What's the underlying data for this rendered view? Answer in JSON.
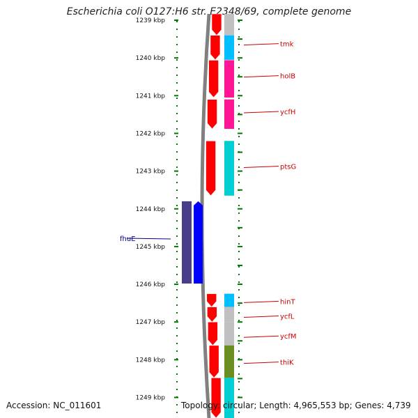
{
  "title": "Escherichia coli O127:H6 str. E2348/69, complete genome",
  "footer": {
    "accession": "Accession: NC_011601",
    "topology": "Topology: circular; Length: 4,965,553 bp; Genes: 4,739"
  },
  "ruler": {
    "ticks": [
      {
        "label": "1239 kbp",
        "kbp": 1239
      },
      {
        "label": "1240 kbp",
        "kbp": 1240
      },
      {
        "label": "1241 kbp",
        "kbp": 1241
      },
      {
        "label": "1242 kbp",
        "kbp": 1242
      },
      {
        "label": "1243 kbp",
        "kbp": 1243
      },
      {
        "label": "1244 kbp",
        "kbp": 1244
      },
      {
        "label": "1245 kbp",
        "kbp": 1245
      },
      {
        "label": "1246 kbp",
        "kbp": 1246
      },
      {
        "label": "1247 kbp",
        "kbp": 1247
      },
      {
        "label": "1248 kbp",
        "kbp": 1248
      },
      {
        "label": "1249 kbp",
        "kbp": 1249
      }
    ]
  },
  "genes": [
    {
      "name": "tmk",
      "start_kbp": 1239.4,
      "end_kbp": 1240.05,
      "strand": "-",
      "color": "#00bfff",
      "label_kbp": 1239.62
    },
    {
      "name": "holB",
      "start_kbp": 1240.06,
      "end_kbp": 1241.05,
      "strand": "-",
      "color": "#ff1493",
      "label_kbp": 1240.47
    },
    {
      "name": "ycfH",
      "start_kbp": 1241.1,
      "end_kbp": 1241.88,
      "strand": "-",
      "color": "#ff1493",
      "label_kbp": 1241.42
    },
    {
      "name": "ptsG",
      "start_kbp": 1242.2,
      "end_kbp": 1243.65,
      "strand": "-",
      "color": "#00ced1",
      "label_kbp": 1242.87
    },
    {
      "name": "fhuE",
      "start_kbp": 1243.8,
      "end_kbp": 1245.98,
      "strand": "+",
      "color": "#0000ff",
      "cog_color": "#483d8b",
      "label_kbp": 1244.78
    },
    {
      "name": "hinT",
      "start_kbp": 1246.25,
      "end_kbp": 1246.6,
      "strand": "-",
      "color": "#00bfff",
      "label_kbp": 1246.45
    },
    {
      "name": "ycfL",
      "start_kbp": 1246.6,
      "end_kbp": 1247.0,
      "strand": "-",
      "color": "#c0c0c0",
      "label_kbp": 1246.84
    },
    {
      "name": "ycfM",
      "start_kbp": 1247.0,
      "end_kbp": 1247.62,
      "strand": "-",
      "color": "#c0c0c0",
      "label_kbp": 1247.37
    },
    {
      "name": "thiK",
      "start_kbp": 1247.62,
      "end_kbp": 1248.48,
      "strand": "-",
      "color": "#6b8e23",
      "label_kbp": 1248.06
    },
    {
      "name": "",
      "start_kbp": 1238.6,
      "end_kbp": 1239.4,
      "strand": "-",
      "color": "#c0c0c0"
    },
    {
      "name": "",
      "start_kbp": 1248.48,
      "end_kbp": 1249.8,
      "strand": "-",
      "color": "#00ced1"
    }
  ],
  "colors": {
    "tick": "#007700",
    "gene_body": "#ff0000",
    "backbone": "#808080",
    "label_minus": "#cc0000",
    "label_plus": "#000080"
  }
}
